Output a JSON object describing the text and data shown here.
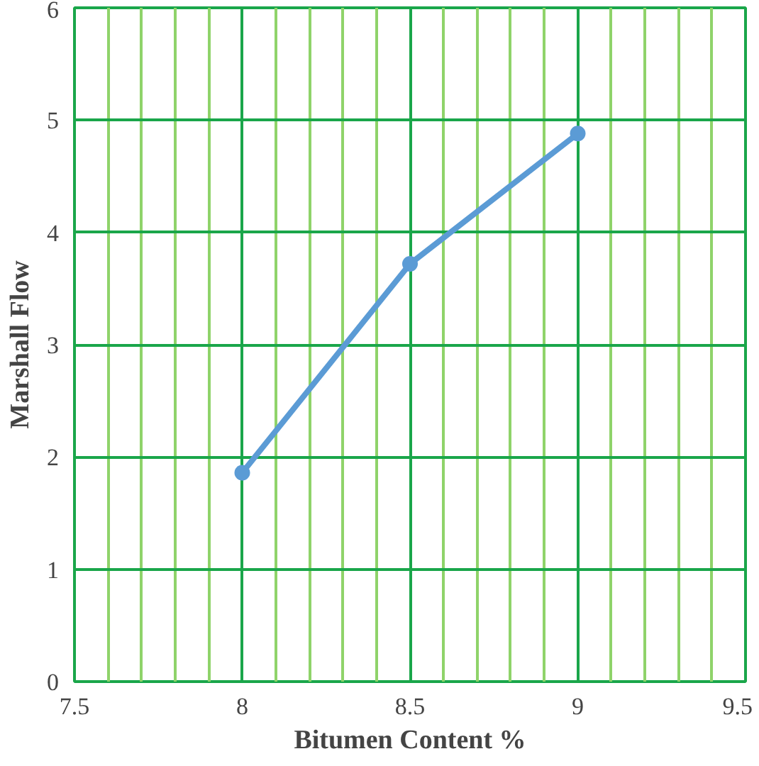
{
  "chart_data": {
    "type": "line",
    "xlabel": "Bitumen Content %",
    "ylabel": "Marshall Flow",
    "x": [
      8,
      8.5,
      9
    ],
    "series": [
      {
        "color": "#5b9bd5",
        "values": [
          1.86,
          3.72,
          4.88
        ]
      }
    ],
    "xlim": [
      7.5,
      9.5
    ],
    "ylim": [
      0,
      6
    ],
    "xticks": [
      7.5,
      {
        "value": 7.6,
        "label": null
      },
      {
        "value": 7.7,
        "label": null
      },
      {
        "value": 7.8,
        "label": null
      },
      {
        "value": 7.9,
        "label": null
      },
      8,
      {
        "value": 8.1,
        "label": null
      },
      {
        "value": 8.2,
        "label": null
      },
      {
        "value": 8.3,
        "label": null
      },
      {
        "value": 8.4,
        "label": null
      },
      8.5,
      {
        "value": 8.6,
        "label": null
      },
      {
        "value": 8.7,
        "label": null
      },
      {
        "value": 8.8,
        "label": null
      },
      {
        "value": 8.9,
        "label": null
      },
      9,
      {
        "value": 9.1,
        "label": null
      },
      {
        "value": 9.2,
        "label": null
      },
      {
        "value": 9.3,
        "label": null
      },
      {
        "value": 9.4,
        "label": null
      },
      9.5
    ],
    "yticks": [
      0,
      1,
      2,
      3,
      4,
      5,
      6
    ],
    "grid": true,
    "marker": "circle",
    "line_style": "solid"
  }
}
